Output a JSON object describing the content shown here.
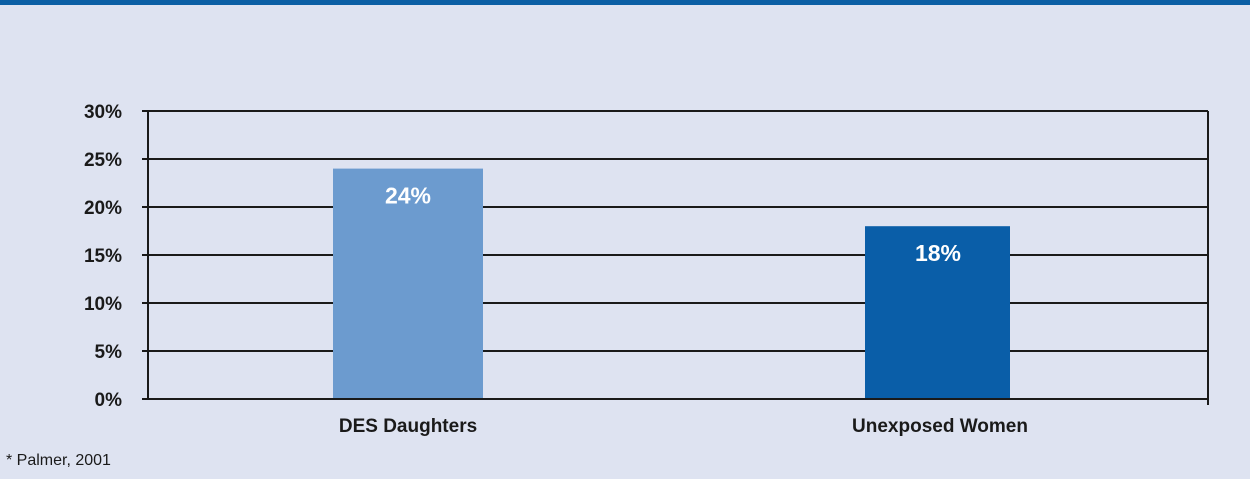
{
  "chart_data": {
    "type": "bar",
    "categories": [
      "DES Daughters",
      "Unexposed Women"
    ],
    "values": [
      24,
      18
    ],
    "value_labels": [
      "24%",
      "18%"
    ],
    "bar_colors": [
      "#6c9bcf",
      "#0a5ea8"
    ],
    "y_ticks": [
      "0%",
      "5%",
      "10%",
      "15%",
      "20%",
      "25%",
      "30%"
    ],
    "ylim": [
      0,
      30
    ],
    "grid": true,
    "legend": "none"
  },
  "footnote": "* Palmer, 2001",
  "colors": {
    "background": "#dee3f1",
    "top_rule": "#0b5fa5",
    "gridline": "#1a1a1a"
  }
}
